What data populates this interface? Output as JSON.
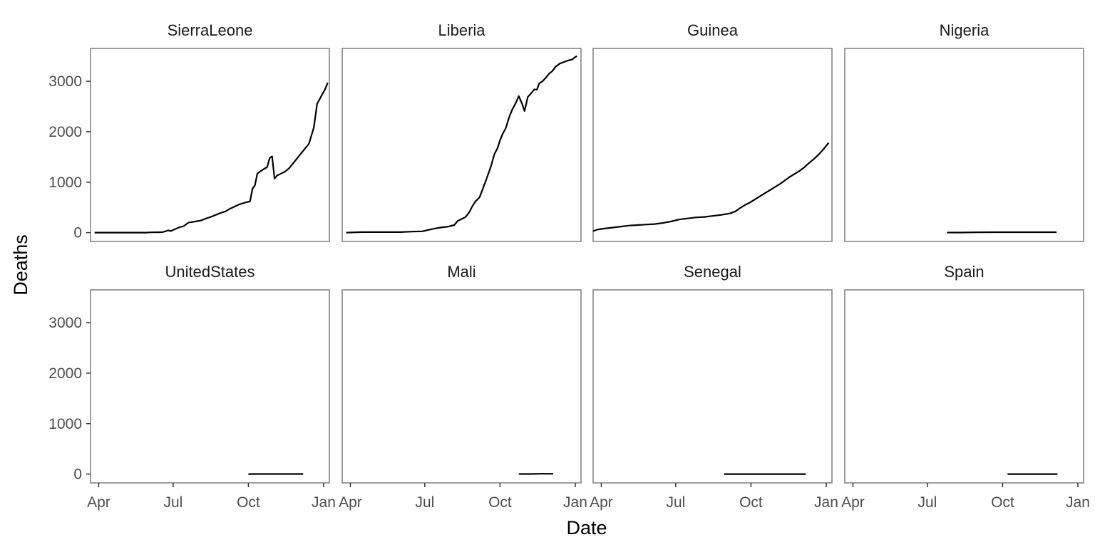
{
  "chart_data": {
    "type": "line",
    "facet": "wrap",
    "xlabel": "Date",
    "ylabel": "Deaths",
    "x_ticks": [
      {
        "date": "2014-04-01",
        "label": "Apr"
      },
      {
        "date": "2014-07-01",
        "label": "Jul"
      },
      {
        "date": "2014-10-01",
        "label": "Oct"
      },
      {
        "date": "2015-01-01",
        "label": "Jan"
      }
    ],
    "y_ticks": [
      0,
      1000,
      2000,
      3000
    ],
    "xlim": [
      "2014-03-22",
      "2015-01-08"
    ],
    "ylim": [
      -175,
      3650
    ],
    "grid": false,
    "line_color": "#000000",
    "panels": [
      {
        "name": "SierraLeone",
        "points": [
          [
            "2014-03-27",
            0
          ],
          [
            "2014-04-15",
            0
          ],
          [
            "2014-05-10",
            0
          ],
          [
            "2014-05-28",
            0
          ],
          [
            "2014-06-05",
            5
          ],
          [
            "2014-06-18",
            8
          ],
          [
            "2014-06-25",
            45
          ],
          [
            "2014-06-28",
            30
          ],
          [
            "2014-07-02",
            60
          ],
          [
            "2014-07-08",
            100
          ],
          [
            "2014-07-14",
            130
          ],
          [
            "2014-07-20",
            200
          ],
          [
            "2014-07-28",
            220
          ],
          [
            "2014-08-04",
            240
          ],
          [
            "2014-08-10",
            280
          ],
          [
            "2014-08-16",
            310
          ],
          [
            "2014-08-22",
            350
          ],
          [
            "2014-08-28",
            390
          ],
          [
            "2014-09-03",
            420
          ],
          [
            "2014-09-08",
            470
          ],
          [
            "2014-09-12",
            500
          ],
          [
            "2014-09-16",
            530
          ],
          [
            "2014-09-20",
            560
          ],
          [
            "2014-09-24",
            580
          ],
          [
            "2014-09-28",
            600
          ],
          [
            "2014-10-01",
            610
          ],
          [
            "2014-10-03",
            620
          ],
          [
            "2014-10-06",
            870
          ],
          [
            "2014-10-09",
            940
          ],
          [
            "2014-10-12",
            1170
          ],
          [
            "2014-10-16",
            1220
          ],
          [
            "2014-10-20",
            1260
          ],
          [
            "2014-10-24",
            1300
          ],
          [
            "2014-10-27",
            1480
          ],
          [
            "2014-10-30",
            1510
          ],
          [
            "2014-11-02",
            1070
          ],
          [
            "2014-11-05",
            1130
          ],
          [
            "2014-11-10",
            1170
          ],
          [
            "2014-11-15",
            1210
          ],
          [
            "2014-11-20",
            1280
          ],
          [
            "2014-11-28",
            1440
          ],
          [
            "2014-12-06",
            1600
          ],
          [
            "2014-12-14",
            1760
          ],
          [
            "2014-12-20",
            2080
          ],
          [
            "2014-12-24",
            2550
          ],
          [
            "2014-12-29",
            2700
          ],
          [
            "2015-01-03",
            2850
          ],
          [
            "2015-01-06",
            2970
          ]
        ]
      },
      {
        "name": "Liberia",
        "points": [
          [
            "2014-03-27",
            0
          ],
          [
            "2014-04-15",
            10
          ],
          [
            "2014-05-10",
            10
          ],
          [
            "2014-06-01",
            10
          ],
          [
            "2014-06-15",
            20
          ],
          [
            "2014-06-28",
            25
          ],
          [
            "2014-07-10",
            70
          ],
          [
            "2014-07-20",
            100
          ],
          [
            "2014-07-30",
            120
          ],
          [
            "2014-08-06",
            150
          ],
          [
            "2014-08-10",
            230
          ],
          [
            "2014-08-15",
            270
          ],
          [
            "2014-08-20",
            310
          ],
          [
            "2014-08-25",
            420
          ],
          [
            "2014-08-28",
            520
          ],
          [
            "2014-09-01",
            620
          ],
          [
            "2014-09-06",
            700
          ],
          [
            "2014-09-10",
            870
          ],
          [
            "2014-09-15",
            1090
          ],
          [
            "2014-09-20",
            1320
          ],
          [
            "2014-09-24",
            1550
          ],
          [
            "2014-09-28",
            1680
          ],
          [
            "2014-10-01",
            1830
          ],
          [
            "2014-10-04",
            1950
          ],
          [
            "2014-10-08",
            2070
          ],
          [
            "2014-10-12",
            2280
          ],
          [
            "2014-10-16",
            2440
          ],
          [
            "2014-10-20",
            2560
          ],
          [
            "2014-10-24",
            2705
          ],
          [
            "2014-10-28",
            2550
          ],
          [
            "2014-10-31",
            2410
          ],
          [
            "2014-11-04",
            2690
          ],
          [
            "2014-11-08",
            2760
          ],
          [
            "2014-11-12",
            2840
          ],
          [
            "2014-11-15",
            2830
          ],
          [
            "2014-11-18",
            2960
          ],
          [
            "2014-11-22",
            3000
          ],
          [
            "2014-11-26",
            3070
          ],
          [
            "2014-11-30",
            3150
          ],
          [
            "2014-12-04",
            3200
          ],
          [
            "2014-12-08",
            3290
          ],
          [
            "2014-12-13",
            3350
          ],
          [
            "2014-12-18",
            3380
          ],
          [
            "2014-12-23",
            3410
          ],
          [
            "2014-12-28",
            3430
          ],
          [
            "2015-01-01",
            3480
          ],
          [
            "2015-01-03",
            3500
          ]
        ]
      },
      {
        "name": "Guinea",
        "points": [
          [
            "2014-03-22",
            30
          ],
          [
            "2014-03-27",
            60
          ],
          [
            "2014-04-05",
            80
          ],
          [
            "2014-04-15",
            100
          ],
          [
            "2014-04-25",
            120
          ],
          [
            "2014-05-05",
            140
          ],
          [
            "2014-05-15",
            150
          ],
          [
            "2014-05-25",
            160
          ],
          [
            "2014-06-05",
            170
          ],
          [
            "2014-06-15",
            190
          ],
          [
            "2014-06-25",
            220
          ],
          [
            "2014-07-05",
            260
          ],
          [
            "2014-07-15",
            280
          ],
          [
            "2014-07-25",
            300
          ],
          [
            "2014-08-05",
            310
          ],
          [
            "2014-08-15",
            330
          ],
          [
            "2014-08-25",
            350
          ],
          [
            "2014-09-05",
            380
          ],
          [
            "2014-09-12",
            420
          ],
          [
            "2014-09-18",
            490
          ],
          [
            "2014-09-24",
            550
          ],
          [
            "2014-09-30",
            600
          ],
          [
            "2014-10-06",
            660
          ],
          [
            "2014-10-12",
            720
          ],
          [
            "2014-10-18",
            780
          ],
          [
            "2014-10-24",
            840
          ],
          [
            "2014-10-30",
            900
          ],
          [
            "2014-11-05",
            960
          ],
          [
            "2014-11-11",
            1030
          ],
          [
            "2014-11-17",
            1100
          ],
          [
            "2014-11-23",
            1160
          ],
          [
            "2014-11-29",
            1220
          ],
          [
            "2014-12-05",
            1290
          ],
          [
            "2014-12-11",
            1380
          ],
          [
            "2014-12-17",
            1460
          ],
          [
            "2014-12-23",
            1550
          ],
          [
            "2014-12-29",
            1660
          ],
          [
            "2015-01-04",
            1780
          ]
        ]
      },
      {
        "name": "Nigeria",
        "points": [
          [
            "2014-07-25",
            1
          ],
          [
            "2014-08-10",
            2
          ],
          [
            "2014-09-01",
            7
          ],
          [
            "2014-09-20",
            8
          ],
          [
            "2014-10-20",
            8
          ],
          [
            "2014-11-20",
            8
          ],
          [
            "2014-12-06",
            8
          ]
        ]
      },
      {
        "name": "UnitedStates",
        "points": [
          [
            "2014-10-01",
            0
          ],
          [
            "2014-10-08",
            1
          ],
          [
            "2014-11-17",
            2
          ],
          [
            "2014-12-07",
            1
          ]
        ]
      },
      {
        "name": "Mali",
        "points": [
          [
            "2014-10-24",
            1
          ],
          [
            "2014-11-05",
            1
          ],
          [
            "2014-11-20",
            5
          ],
          [
            "2014-12-05",
            6
          ]
        ]
      },
      {
        "name": "Senegal",
        "points": [
          [
            "2014-08-29",
            0
          ],
          [
            "2014-10-15",
            0
          ],
          [
            "2014-12-07",
            0
          ]
        ]
      },
      {
        "name": "Spain",
        "points": [
          [
            "2014-10-07",
            0
          ],
          [
            "2014-11-01",
            0
          ],
          [
            "2014-12-07",
            0
          ]
        ]
      }
    ]
  }
}
